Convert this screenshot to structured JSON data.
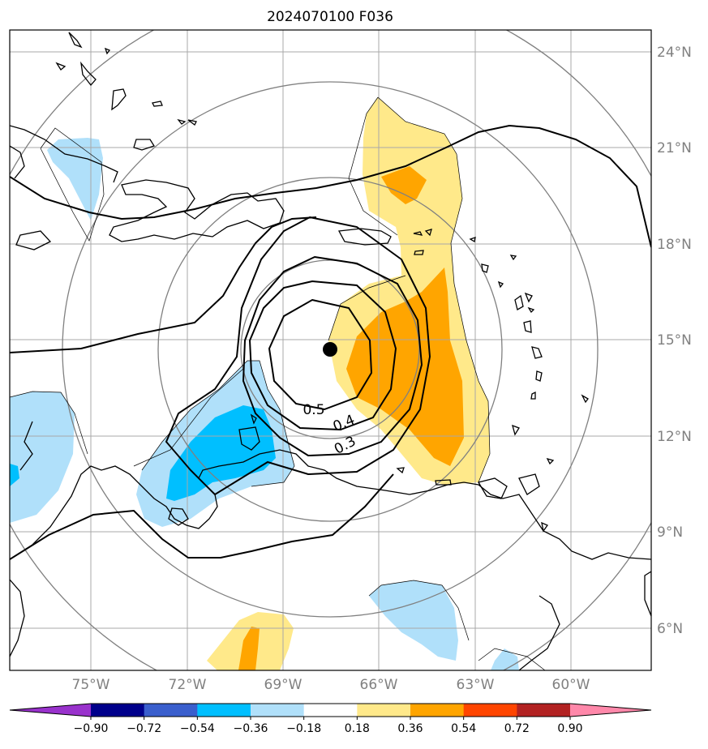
{
  "title": "2024070100 F036",
  "map": {
    "lon_labels": [
      "75°W",
      "72°W",
      "69°W",
      "66°W",
      "63°W",
      "60°W"
    ],
    "lat_labels": [
      "24°N",
      "21°N",
      "18°N",
      "15°N",
      "12°N",
      "9°N",
      "6°N"
    ],
    "storm_center": {
      "lon": -67.5,
      "lat": 14.7
    },
    "contour_labels": [
      "0.5",
      "0.4",
      "0.3"
    ],
    "grid": true
  },
  "colorbar": {
    "ticks": [
      "−0.90",
      "−0.72",
      "−0.54",
      "−0.36",
      "−0.18",
      "0.18",
      "0.36",
      "0.54",
      "0.72",
      "0.90"
    ],
    "colors": [
      "#9932cc",
      "#00008b",
      "#3a5fcd",
      "#00bfff",
      "#b0e0fa",
      "#ffffff",
      "#ffe98a",
      "#ffa500",
      "#ff4500",
      "#b22222",
      "#ff88aa"
    ]
  }
}
